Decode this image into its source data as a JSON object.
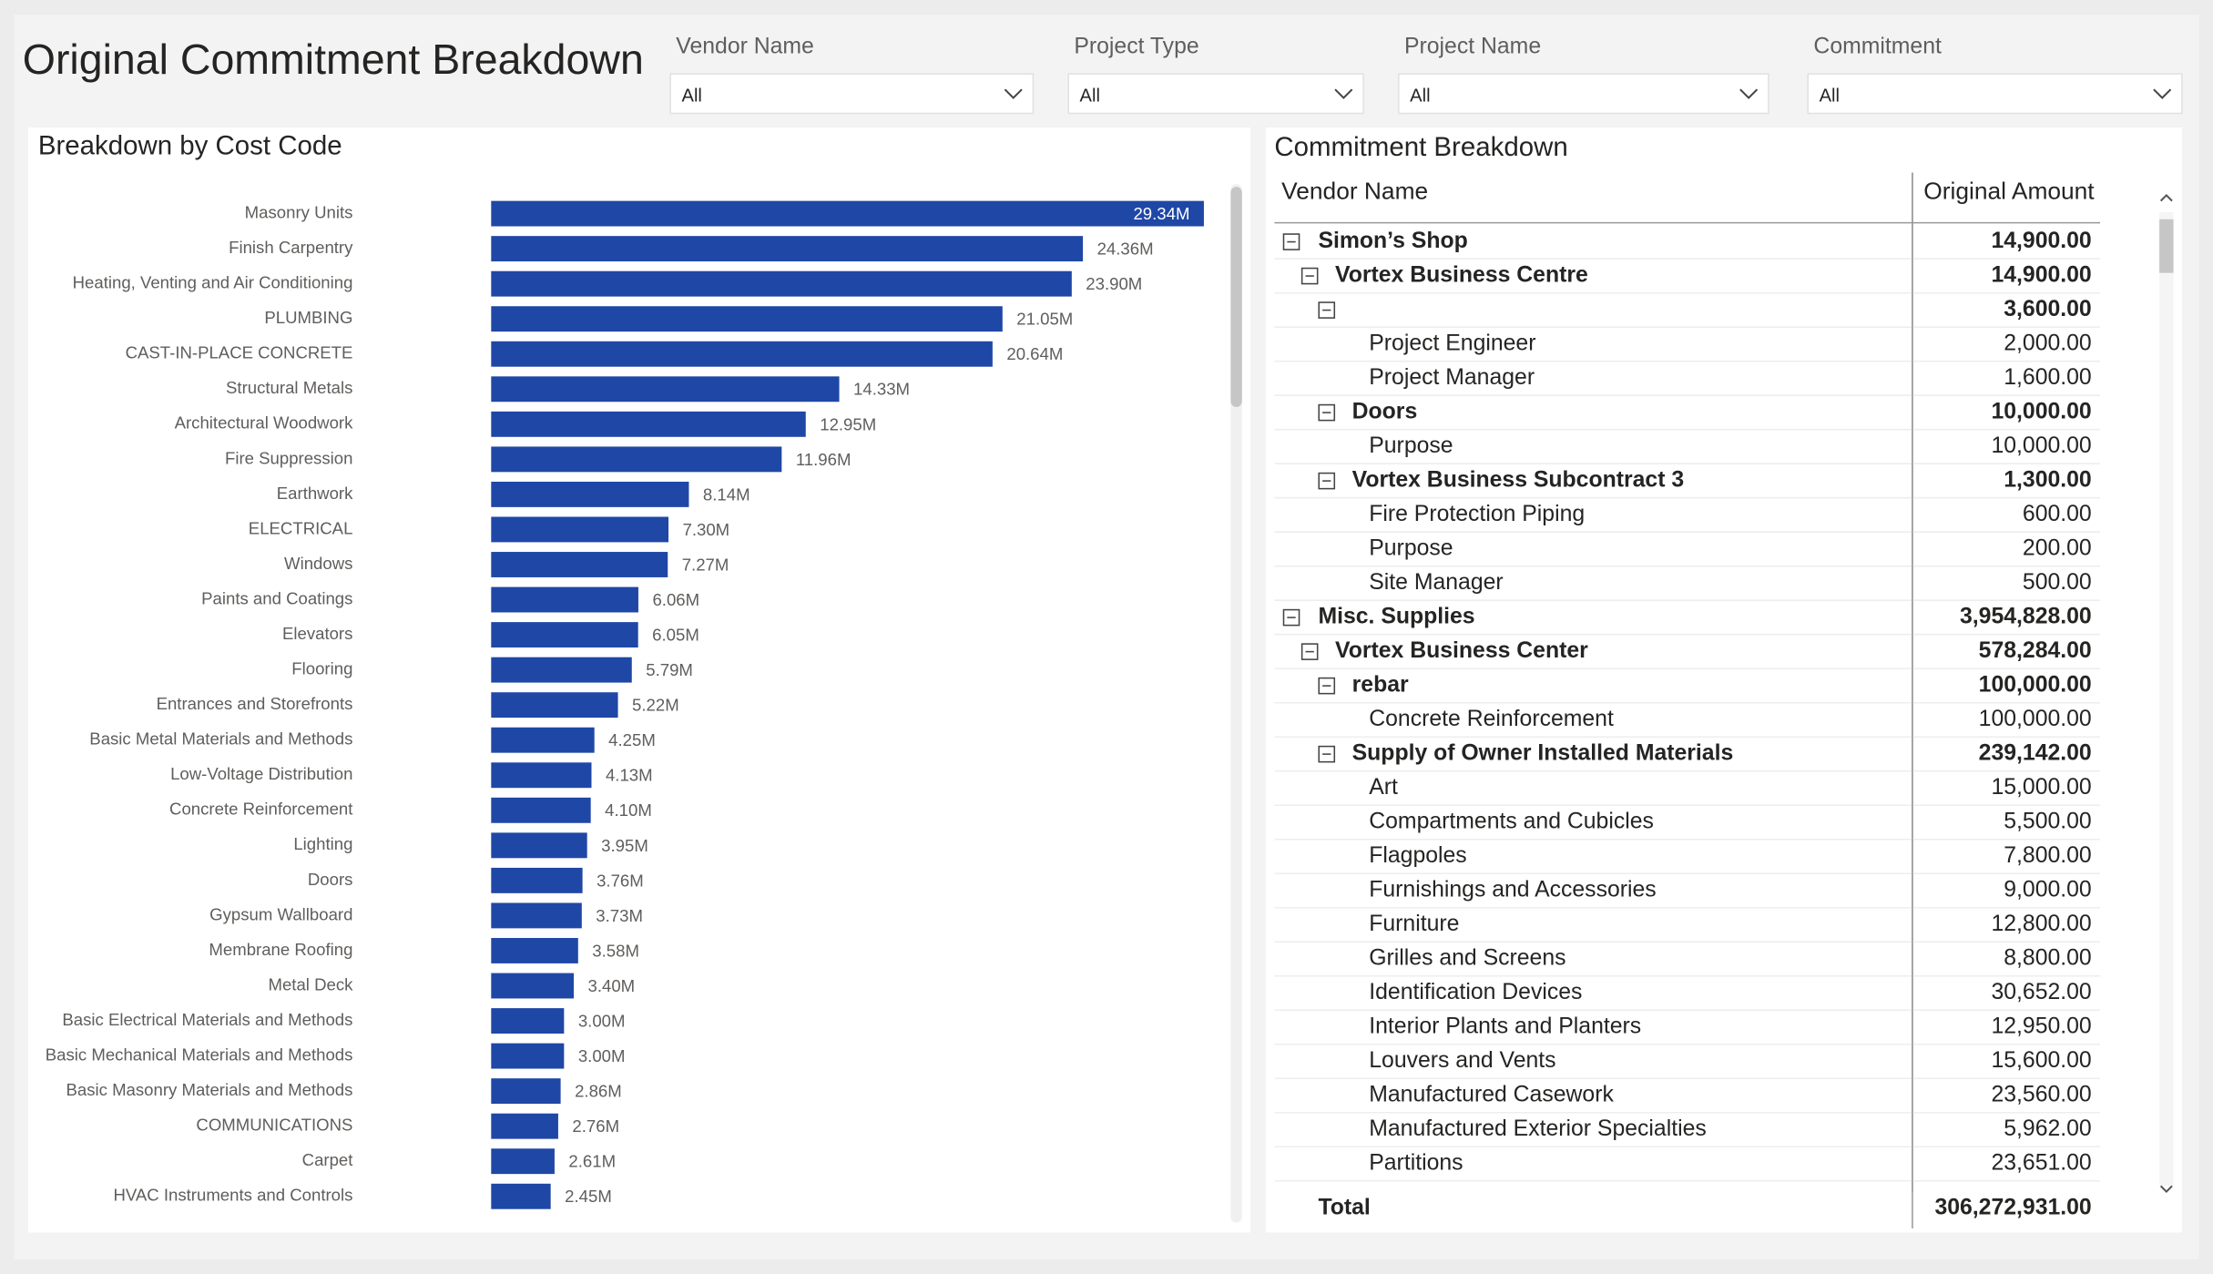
{
  "header": {
    "title": "Original Commitment Breakdown"
  },
  "filters": [
    {
      "label": "Vendor Name",
      "value": "All"
    },
    {
      "label": "Project Type",
      "value": "All"
    },
    {
      "label": "Project Name",
      "value": "All"
    },
    {
      "label": "Commitment",
      "value": "All"
    }
  ],
  "chart_data": {
    "type": "bar",
    "orientation": "horizontal",
    "title": "Breakdown by Cost Code",
    "color": "#1f47a6",
    "categories": [
      "Masonry Units",
      "Finish Carpentry",
      "Heating, Venting and Air Conditioning",
      "PLUMBING",
      "CAST-IN-PLACE CONCRETE",
      "Structural Metals",
      "Architectural Woodwork",
      "Fire Suppression",
      "Earthwork",
      "ELECTRICAL",
      "Windows",
      "Paints and Coatings",
      "Elevators",
      "Flooring",
      "Entrances and Storefronts",
      "Basic Metal Materials and Methods",
      "Low-Voltage Distribution",
      "Concrete Reinforcement",
      "Lighting",
      "Doors",
      "Gypsum Wallboard",
      "Membrane Roofing",
      "Metal Deck",
      "Basic Electrical Materials and Methods",
      "Basic Mechanical Materials and Methods",
      "Basic Masonry Materials and Methods",
      "COMMUNICATIONS",
      "Carpet",
      "HVAC Instruments and Controls"
    ],
    "values": [
      29.34,
      24.36,
      23.9,
      21.05,
      20.64,
      14.33,
      12.95,
      11.96,
      8.14,
      7.3,
      7.27,
      6.06,
      6.05,
      5.79,
      5.22,
      4.25,
      4.13,
      4.1,
      3.95,
      3.76,
      3.73,
      3.58,
      3.4,
      3.0,
      3.0,
      2.86,
      2.76,
      2.61,
      2.45
    ],
    "value_labels": [
      "29.34M",
      "24.36M",
      "23.90M",
      "21.05M",
      "20.64M",
      "14.33M",
      "12.95M",
      "11.96M",
      "8.14M",
      "7.30M",
      "7.27M",
      "6.06M",
      "6.05M",
      "5.79M",
      "5.22M",
      "4.25M",
      "4.13M",
      "4.10M",
      "3.95M",
      "3.76M",
      "3.73M",
      "3.58M",
      "3.40M",
      "3.00M",
      "3.00M",
      "2.86M",
      "2.76M",
      "2.61M",
      "2.45M"
    ]
  },
  "table": {
    "title": "Commitment Breakdown",
    "columns": [
      "Vendor Name",
      "Original Amount"
    ],
    "vendors": [
      {
        "name": "Simon’s Shop",
        "amount": "14,900.00",
        "projects": [
          {
            "name": "Vortex Business Centre",
            "amount": "14,900.00",
            "commitments": [
              {
                "amount": "3,600.00",
                "lines": [
                  {
                    "name": "Project Engineer",
                    "amount": "2,000.00"
                  },
                  {
                    "name": "Project Manager",
                    "amount": "1,600.00"
                  }
                ]
              },
              {
                "name": "Doors",
                "amount": "10,000.00",
                "lines": [
                  {
                    "name": "Purpose",
                    "amount": "10,000.00"
                  }
                ]
              },
              {
                "name": "Vortex Business Subcontract 3",
                "amount": "1,300.00",
                "lines": [
                  {
                    "name": "Fire Protection Piping",
                    "amount": "600.00"
                  },
                  {
                    "name": "Purpose",
                    "amount": "200.00"
                  },
                  {
                    "name": "Site Manager",
                    "amount": "500.00"
                  }
                ]
              }
            ]
          }
        ]
      },
      {
        "name": "Misc. Supplies",
        "amount": "3,954,828.00",
        "projects": [
          {
            "name": "Vortex Business Center",
            "amount": "578,284.00",
            "commitments": [
              {
                "name": "rebar",
                "amount": "100,000.00",
                "lines": [
                  {
                    "name": "Concrete Reinforcement",
                    "amount": "100,000.00"
                  }
                ]
              },
              {
                "name": "Supply of Owner Installed Materials",
                "amount": "239,142.00",
                "lines": [
                  {
                    "name": "Art",
                    "amount": "15,000.00"
                  },
                  {
                    "name": "Compartments and Cubicles",
                    "amount": "5,500.00"
                  },
                  {
                    "name": "Flagpoles",
                    "amount": "7,800.00"
                  },
                  {
                    "name": "Furnishings and Accessories",
                    "amount": "9,000.00"
                  },
                  {
                    "name": "Furniture",
                    "amount": "12,800.00"
                  },
                  {
                    "name": "Grilles and Screens",
                    "amount": "8,800.00"
                  },
                  {
                    "name": "Identification Devices",
                    "amount": "30,652.00"
                  },
                  {
                    "name": "Interior Plants and Planters",
                    "amount": "12,950.00"
                  },
                  {
                    "name": "Louvers and Vents",
                    "amount": "15,600.00"
                  },
                  {
                    "name": "Manufactured Casework",
                    "amount": "23,560.00"
                  },
                  {
                    "name": "Manufactured Exterior Specialties",
                    "amount": "5,962.00"
                  },
                  {
                    "name": "Partitions",
                    "amount": "23,651.00"
                  }
                ]
              }
            ]
          }
        ]
      }
    ],
    "total": {
      "label": "Total",
      "amount": "306,272,931.00"
    }
  }
}
